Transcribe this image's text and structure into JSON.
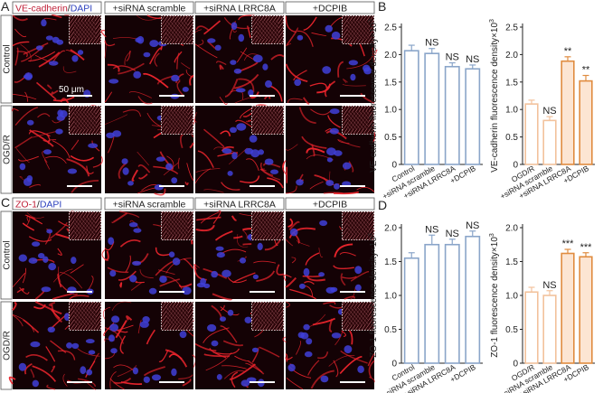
{
  "panels": {
    "A": {
      "letter": "A",
      "header_stain": "VE-cadherin",
      "header_sep": "/",
      "header_dapi": "DAPI",
      "columns": [
        "+siRNA scramble",
        "+siRNA LRRC8A",
        "+DCPIB"
      ],
      "rows": [
        "Control",
        "OGD/R"
      ],
      "scale_label": "50 μm"
    },
    "C": {
      "letter": "C",
      "header_stain": "ZO-1",
      "header_sep": "/",
      "header_dapi": "DAPI",
      "columns": [
        "+siRNA scramble",
        "+siRNA LRRC8A",
        "+DCPIB"
      ],
      "rows": [
        "Control",
        "OGD/R"
      ]
    }
  },
  "colors": {
    "control_bars": "#8aa5c9",
    "ogdr_light": "#f2c29c",
    "ogdr_dark": "#e08c40",
    "stain_red": "#e8242c",
    "nucleus_blue": "#3f3fd8",
    "stain_label_ve": "#c0223a",
    "stain_label_zo": "#c0223a",
    "dapi_label": "#2b3fbd"
  },
  "chart_data": [
    {
      "panel": "B",
      "type": "bar",
      "letter": "B",
      "categories": [
        "Control",
        "+siRNA scramble",
        "+siRNA LRRC8A",
        "+DCPIB"
      ],
      "values": [
        2.07,
        2.02,
        1.78,
        1.74
      ],
      "errors": [
        0.1,
        0.09,
        0.07,
        0.07
      ],
      "significance": [
        "",
        "NS",
        "NS",
        "NS"
      ],
      "ylabel": "VE-cadherin fluorescence density×10",
      "ylabel_exp": "3",
      "ylim": [
        0,
        2.5
      ],
      "yticks": [
        "0",
        "0.5",
        "1.0",
        "1.5",
        "2.0",
        "2.5"
      ],
      "bar_colors": [
        "#8aa5c9",
        "#8aa5c9",
        "#8aa5c9",
        "#8aa5c9"
      ]
    },
    {
      "panel": "B",
      "type": "bar",
      "categories": [
        "OGD/R",
        "+siRNA scramble",
        "+siRNA LRRC8A",
        "+DCPIB"
      ],
      "values": [
        1.1,
        0.8,
        1.88,
        1.52
      ],
      "errors": [
        0.07,
        0.07,
        0.08,
        0.1
      ],
      "significance": [
        "",
        "NS",
        "**",
        "**"
      ],
      "ylabel": "VE-cadherin fluorescence density×10",
      "ylabel_exp": "3",
      "ylim": [
        0,
        2.5
      ],
      "yticks": [
        "0",
        "0.5",
        "1.0",
        "1.5",
        "2.0",
        "2.5"
      ],
      "bar_colors": [
        "#f2c29c",
        "#f2c29c",
        "#e08c40",
        "#e08c40"
      ]
    },
    {
      "panel": "D",
      "type": "bar",
      "letter": "D",
      "categories": [
        "Control",
        "+siRNA scramble",
        "+siRNA LRRC8A",
        "+DCPIB"
      ],
      "values": [
        1.55,
        1.75,
        1.75,
        1.87
      ],
      "errors": [
        0.08,
        0.14,
        0.08,
        0.08
      ],
      "significance": [
        "",
        "NS",
        "NS",
        "NS"
      ],
      "ylabel": "ZO-1 fluorescence density×10",
      "ylabel_exp": "3",
      "ylim": [
        0,
        2.0
      ],
      "yticks": [
        "0",
        "0.5",
        "1.0",
        "1.5",
        "2.0"
      ],
      "bar_colors": [
        "#8aa5c9",
        "#8aa5c9",
        "#8aa5c9",
        "#8aa5c9"
      ]
    },
    {
      "panel": "D",
      "type": "bar",
      "categories": [
        "OGD/R",
        "+siRNA scramble",
        "+siRNA LRRC8A",
        "+DCPIB"
      ],
      "values": [
        1.05,
        1.0,
        1.62,
        1.57
      ],
      "errors": [
        0.07,
        0.07,
        0.06,
        0.06
      ],
      "significance": [
        "",
        "NS",
        "***",
        "***"
      ],
      "ylabel": "ZO-1 fluorescence density×10",
      "ylabel_exp": "3",
      "ylim": [
        0,
        2.0
      ],
      "yticks": [
        "0",
        "0.5",
        "1.0",
        "1.5",
        "2.0"
      ],
      "bar_colors": [
        "#f2c29c",
        "#f2c29c",
        "#e08c40",
        "#e08c40"
      ]
    }
  ]
}
